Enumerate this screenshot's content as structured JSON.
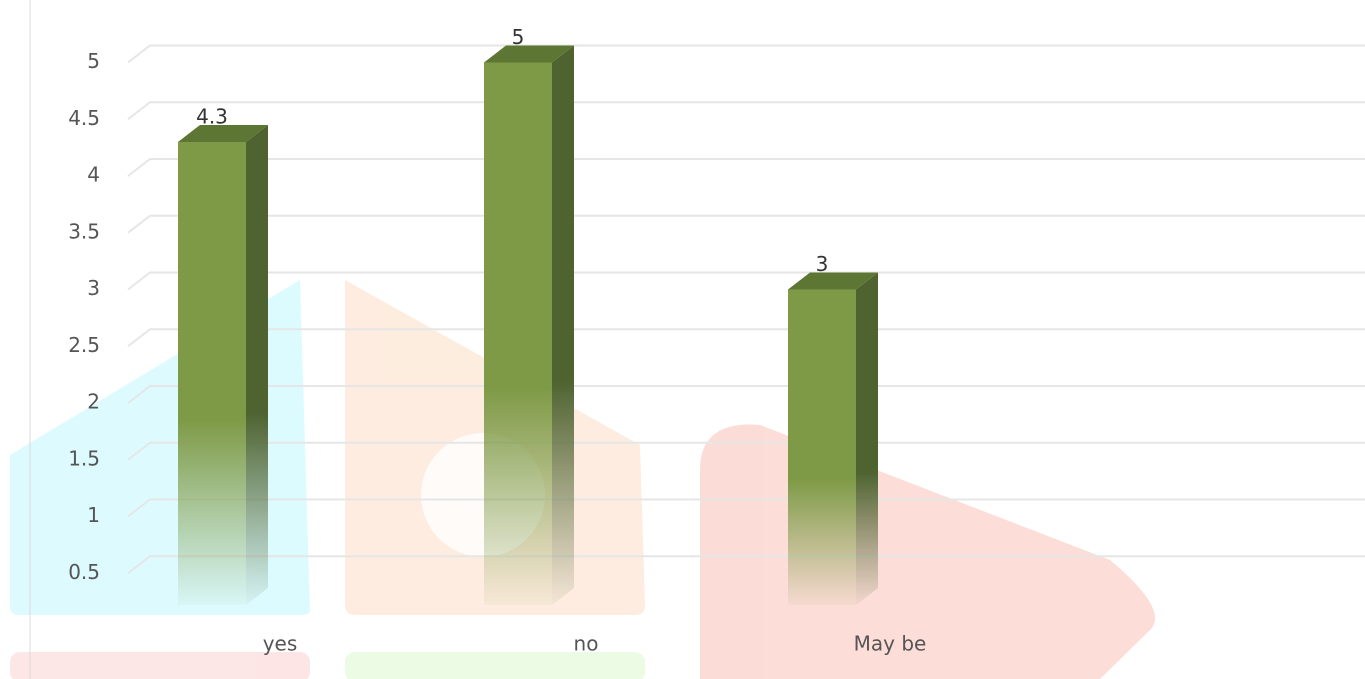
{
  "chart_data": {
    "type": "bar3d",
    "categories": [
      "yes",
      "no",
      "May be"
    ],
    "values": [
      4.3,
      5,
      3
    ],
    "color": "#7e9a46",
    "ylim": [
      0,
      5
    ],
    "yticks": [
      0.5,
      1,
      1.5,
      2,
      2.5,
      3,
      3.5,
      4,
      4.5,
      5
    ],
    "grid": true
  }
}
